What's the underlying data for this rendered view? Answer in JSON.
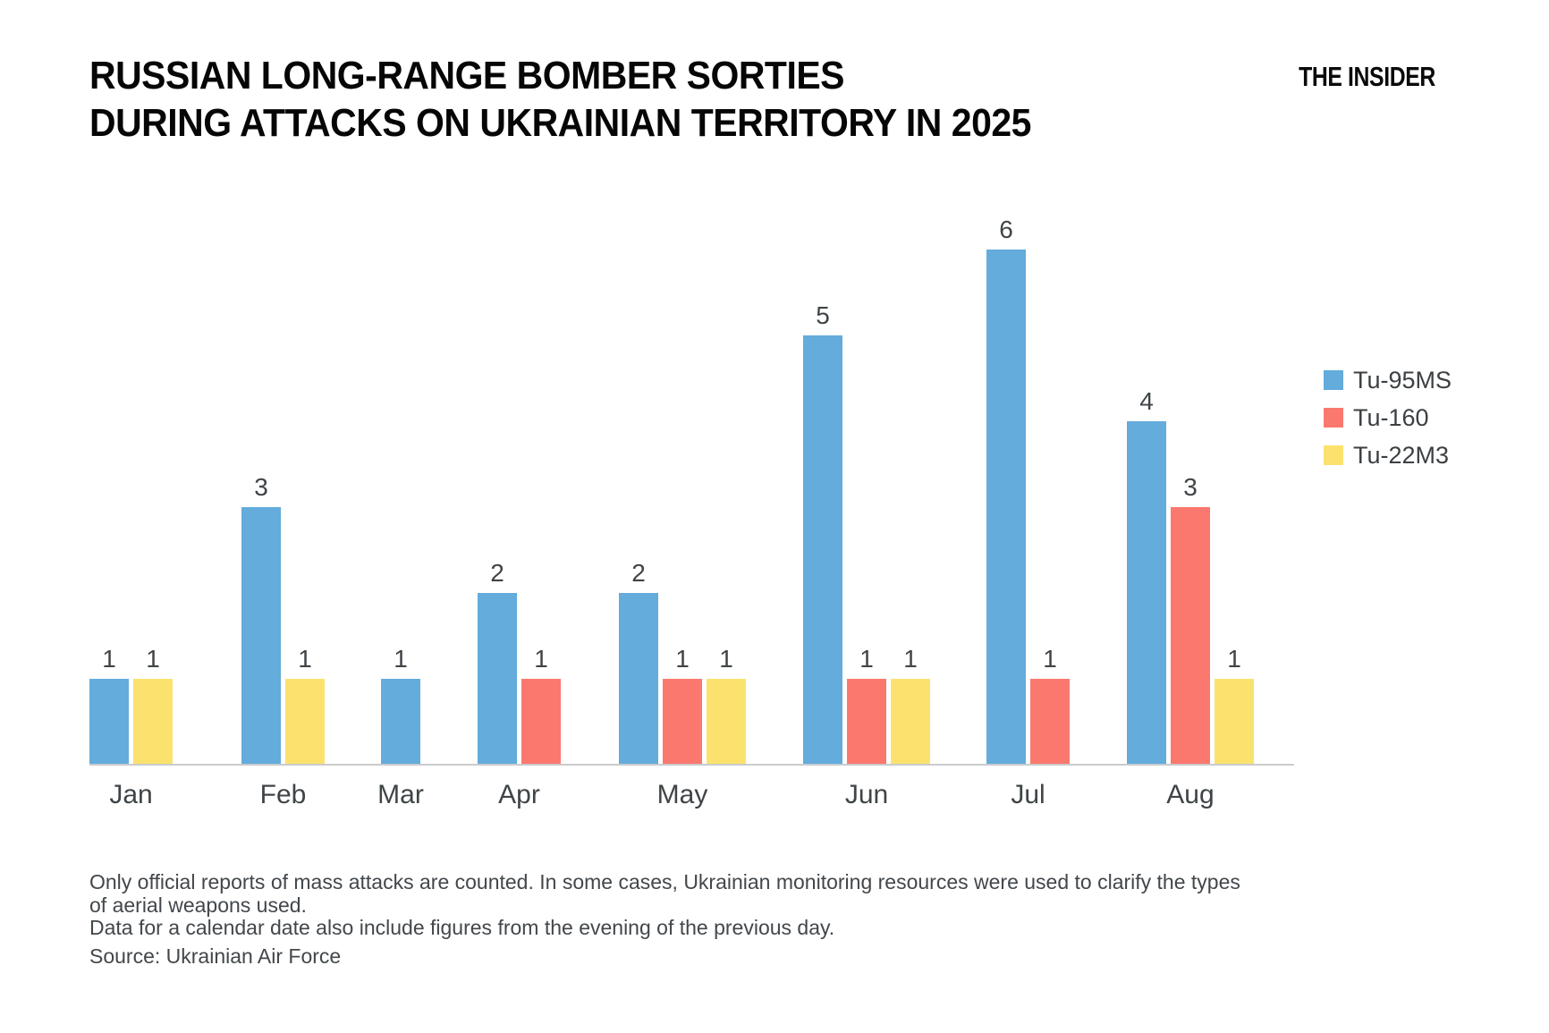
{
  "header": {
    "title_line1": "RUSSIAN LONG-RANGE BOMBER SORTIES",
    "title_line2": "DURING ATTACKS ON UKRAINIAN TERRITORY IN 2025",
    "brand": "THE INSIDER"
  },
  "chart_data": {
    "type": "bar",
    "title": "RUSSIAN LONG-RANGE BOMBER SORTIES DURING ATTACKS ON UKRAINIAN TERRITORY IN 2025",
    "categories": [
      "Jan",
      "Feb",
      "Mar",
      "Apr",
      "May",
      "Jun",
      "Jul",
      "Aug"
    ],
    "series": [
      {
        "name": "Tu-95MS",
        "color": "#63ACDC",
        "values": [
          1,
          3,
          1,
          2,
          2,
          5,
          6,
          4
        ]
      },
      {
        "name": "Tu-160",
        "color": "#FB786E",
        "values": [
          0,
          0,
          0,
          1,
          1,
          1,
          1,
          3
        ]
      },
      {
        "name": "Tu-22M3",
        "color": "#FBE26E",
        "values": [
          1,
          1,
          0,
          0,
          1,
          1,
          0,
          1
        ]
      }
    ],
    "ylim": [
      0,
      6
    ],
    "grid": false,
    "legend_position": "right",
    "bar_value_labels": true,
    "zero_bars_omitted": true,
    "value_label_color": "#3f4447",
    "axis_line_color": "#c9cbcd"
  },
  "footer": {
    "notes": [
      "Only official reports of mass attacks are counted. In some cases, Ukrainian monitoring resources were used to clarify the types",
      "of aerial weapons used.",
      "Data for a calendar date also include figures from the evening of the previous day."
    ],
    "source": "Source: Ukrainian Air Force"
  }
}
